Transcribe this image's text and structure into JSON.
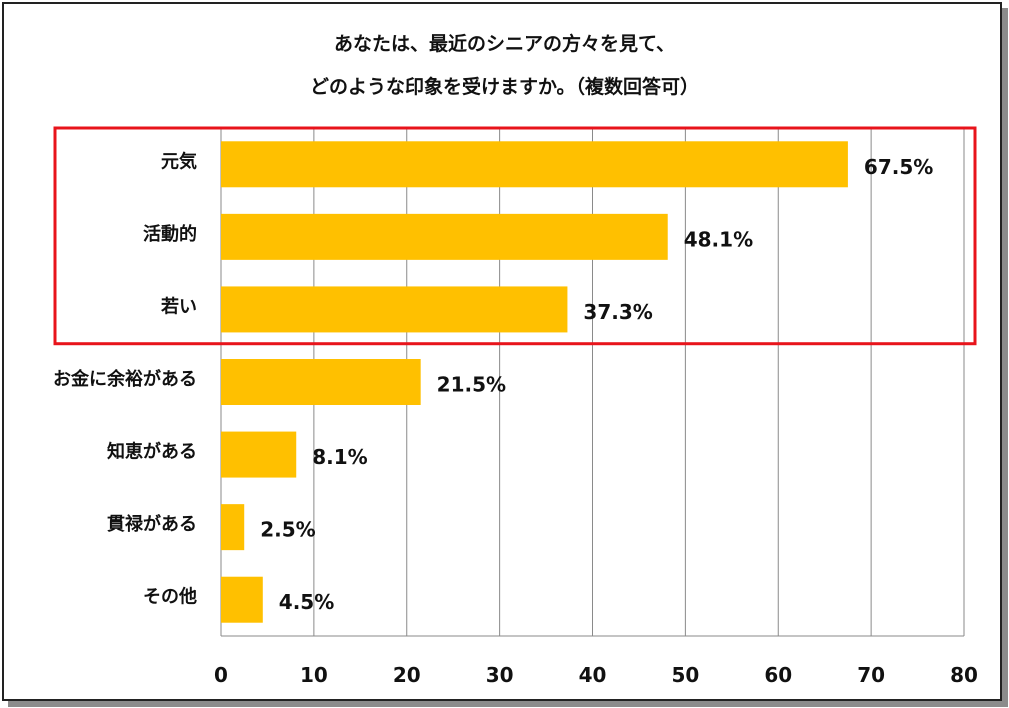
{
  "chart_data": {
    "type": "bar",
    "orientation": "horizontal",
    "title_line1": "あなたは、最近のシニアの方々を見て、",
    "title_line2": "どのような印象を受けますか。（複数回答可）",
    "categories": [
      "元気",
      "活動的",
      "若い",
      "お金に余裕がある",
      "知恵がある",
      "貫禄がある",
      "その他"
    ],
    "values": [
      67.5,
      48.1,
      37.3,
      21.5,
      8.1,
      2.5,
      4.5
    ],
    "value_labels": [
      "67.5%",
      "48.1%",
      "37.3%",
      "21.5%",
      "8.1%",
      "2.5%",
      "4.5%"
    ],
    "xlim": [
      0,
      80
    ],
    "xticks": [
      "0",
      "10",
      "20",
      "30",
      "40",
      "50",
      "60",
      "70",
      "80"
    ],
    "grid": true,
    "highlight": {
      "categories": [
        "元気",
        "活動的",
        "若い"
      ],
      "color": "#e8141b"
    },
    "bar_color": "#ffc000"
  }
}
